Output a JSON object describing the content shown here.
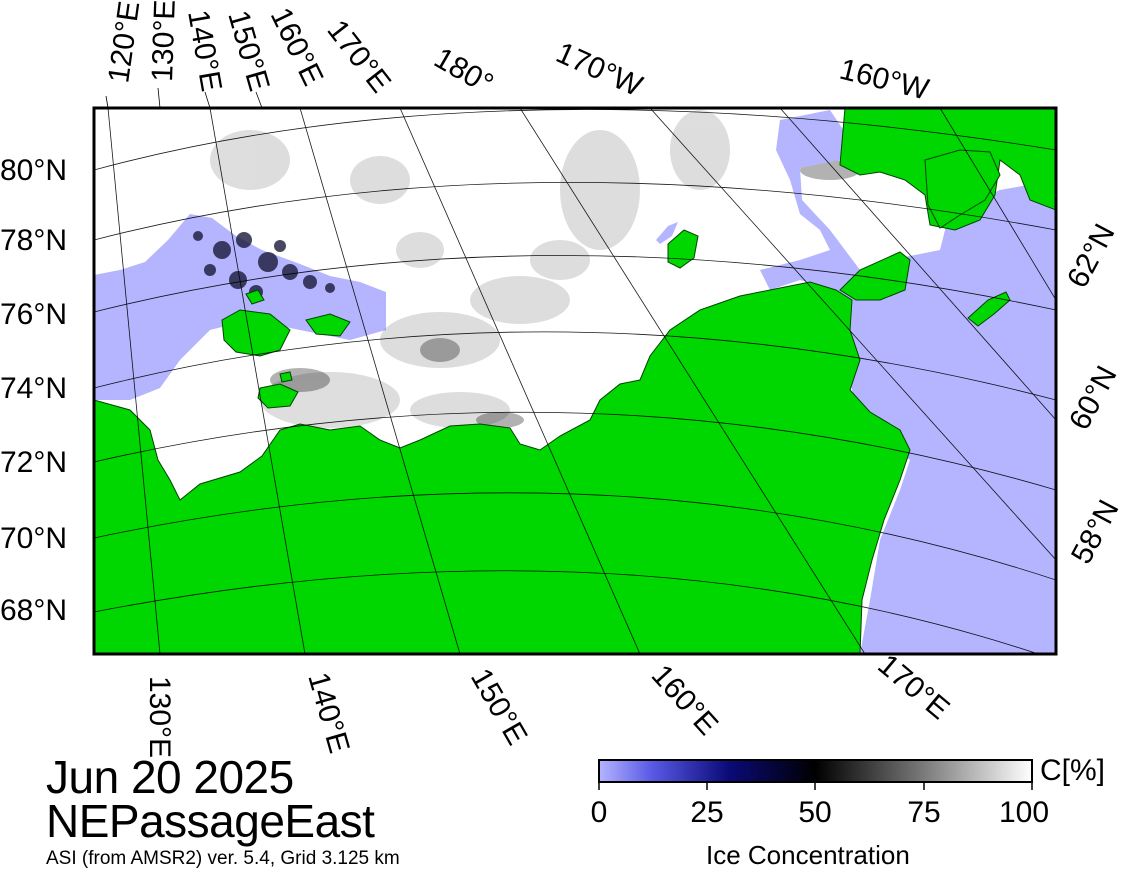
{
  "date": "Jun 20 2025",
  "region": "NEPassageEast",
  "product": "ASI (from AMSR2) ver. 5.4,  Grid 3.125 km",
  "colors": {
    "land": "#00d600",
    "open_water": "#b4b4ff",
    "ice_full": "#ffffff",
    "ice_mid": "#000000",
    "ice_low": "#00003c"
  },
  "map_labels": {
    "top_lon": [
      "120°E",
      "130°E",
      "140°E",
      "150°E",
      "160°E",
      "170°E",
      "180°",
      "170°W",
      "160°W"
    ],
    "left_lat": [
      "80°N",
      "78°N",
      "76°N",
      "74°N",
      "72°N",
      "70°N",
      "68°N"
    ],
    "bottom_lon": [
      "130°E",
      "140°E",
      "150°E",
      "160°E",
      "170°E"
    ],
    "right_lat": [
      "62°N",
      "60°N",
      "58°N"
    ]
  },
  "colorbar": {
    "title": "Ice Concentration",
    "unit": "C[%]",
    "ticks": [
      "0",
      "25",
      "50",
      "75",
      "100"
    ]
  }
}
